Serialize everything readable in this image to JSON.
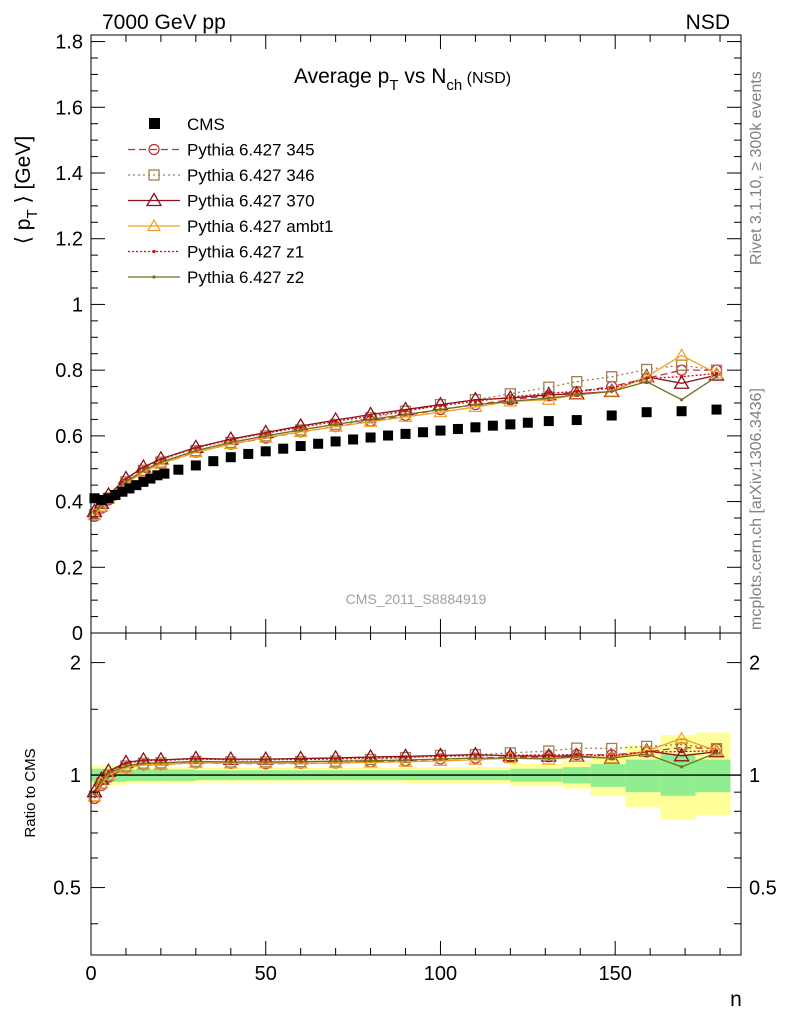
{
  "header": {
    "left": "7000 GeV pp",
    "right": "NSD"
  },
  "side_texts": {
    "rivet": "Rivet 3.1.10, ≥ 300k events",
    "mcplots": "mcplots.cern.ch [arXiv:1306.3436]"
  },
  "colors": {
    "cms": "#000000",
    "p345": "#c0303a",
    "p346": "#a08050",
    "p370": "#8b1020",
    "ambt1": "#f0a020",
    "z1": "#c01010",
    "z2": "#707020",
    "band_inner": "#90ee90",
    "band_outer": "#ffff99"
  },
  "chart_data": [
    {
      "type": "scatter",
      "title": "Average p_T vs N_ch (NSD)",
      "title_parts": {
        "main": "Average p",
        "sub1": "T",
        "mid": " vs N",
        "sub2": "ch",
        "tail": " (NSD)"
      },
      "ylabel": "⟨ p_T ⟩ [GeV]",
      "ylabel_parts": {
        "open": "⟨ p",
        "sub": "T",
        "close": " ⟩ [GeV]"
      },
      "xlabel": "n",
      "xlim": [
        0,
        186
      ],
      "ylim": [
        0,
        1.82
      ],
      "yticks": [
        "0",
        "0.2",
        "0.4",
        "0.6",
        "0.8",
        "1",
        "1.2",
        "1.4",
        "1.6",
        "1.8"
      ],
      "xticks": [
        "0",
        "50",
        "100",
        "150"
      ],
      "watermark": "CMS_2011_S8884919",
      "legend": [
        {
          "key": "cms",
          "label": "CMS"
        },
        {
          "key": "p345",
          "label": "Pythia 6.427 345"
        },
        {
          "key": "p346",
          "label": "Pythia 6.427 346"
        },
        {
          "key": "p370",
          "label": "Pythia 6.427 370"
        },
        {
          "key": "ambt1",
          "label": "Pythia 6.427 ambt1"
        },
        {
          "key": "z1",
          "label": "Pythia 6.427 z1"
        },
        {
          "key": "z2",
          "label": "Pythia 6.427 z2"
        }
      ],
      "cms": {
        "x": [
          1,
          3,
          5,
          7,
          9,
          11,
          13,
          15,
          17,
          19,
          21,
          25,
          30,
          35,
          40,
          45,
          50,
          55,
          60,
          65,
          70,
          75,
          80,
          85,
          90,
          95,
          100,
          105,
          110,
          115,
          120,
          125,
          131,
          139,
          149,
          159,
          169,
          179
        ],
        "y": [
          0.41,
          0.405,
          0.41,
          0.42,
          0.43,
          0.44,
          0.45,
          0.46,
          0.47,
          0.48,
          0.485,
          0.497,
          0.51,
          0.523,
          0.535,
          0.545,
          0.553,
          0.561,
          0.569,
          0.576,
          0.583,
          0.589,
          0.595,
          0.601,
          0.606,
          0.611,
          0.616,
          0.621,
          0.626,
          0.631,
          0.635,
          0.64,
          0.645,
          0.648,
          0.662,
          0.672,
          0.675,
          0.68
        ]
      },
      "series": [
        {
          "key": "p345",
          "name": "Pythia 6.427 345",
          "x": [
            1,
            3,
            5,
            10,
            15,
            20,
            30,
            40,
            50,
            60,
            70,
            80,
            90,
            100,
            110,
            120,
            131,
            139,
            149,
            159,
            169,
            179
          ],
          "y": [
            0.355,
            0.38,
            0.405,
            0.455,
            0.49,
            0.515,
            0.55,
            0.575,
            0.593,
            0.612,
            0.628,
            0.645,
            0.662,
            0.68,
            0.695,
            0.71,
            0.722,
            0.735,
            0.75,
            0.775,
            0.8,
            0.8
          ]
        },
        {
          "key": "p346",
          "name": "Pythia 6.427 346",
          "x": [
            1,
            3,
            5,
            10,
            15,
            20,
            30,
            40,
            50,
            60,
            70,
            80,
            90,
            100,
            110,
            120,
            131,
            139,
            149,
            159,
            169,
            179
          ],
          "y": [
            0.36,
            0.385,
            0.41,
            0.46,
            0.495,
            0.52,
            0.555,
            0.58,
            0.6,
            0.618,
            0.635,
            0.655,
            0.675,
            0.695,
            0.71,
            0.728,
            0.748,
            0.765,
            0.78,
            0.802,
            0.815,
            0.8
          ]
        },
        {
          "key": "p370",
          "name": "Pythia 6.427 370",
          "x": [
            1,
            3,
            5,
            10,
            15,
            20,
            30,
            40,
            50,
            60,
            70,
            80,
            90,
            100,
            110,
            120,
            131,
            139,
            149,
            159,
            169,
            179
          ],
          "y": [
            0.37,
            0.395,
            0.42,
            0.47,
            0.505,
            0.53,
            0.565,
            0.59,
            0.61,
            0.63,
            0.648,
            0.665,
            0.68,
            0.695,
            0.71,
            0.715,
            0.725,
            0.728,
            0.735,
            0.78,
            0.76,
            0.785
          ]
        },
        {
          "key": "ambt1",
          "name": "Pythia 6.427 ambt1",
          "x": [
            1,
            3,
            5,
            10,
            15,
            20,
            30,
            40,
            50,
            60,
            70,
            80,
            90,
            100,
            110,
            120,
            131,
            139,
            149,
            159,
            169,
            179
          ],
          "y": [
            0.36,
            0.385,
            0.41,
            0.455,
            0.49,
            0.515,
            0.55,
            0.575,
            0.595,
            0.612,
            0.628,
            0.643,
            0.658,
            0.672,
            0.688,
            0.705,
            0.71,
            0.725,
            0.735,
            0.78,
            0.845,
            0.79
          ]
        },
        {
          "key": "z1",
          "name": "Pythia 6.427 z1",
          "x": [
            1,
            3,
            5,
            10,
            15,
            20,
            30,
            40,
            50,
            60,
            70,
            80,
            90,
            100,
            110,
            120,
            131,
            139,
            149,
            159,
            169,
            179
          ],
          "y": [
            0.37,
            0.392,
            0.418,
            0.468,
            0.503,
            0.528,
            0.563,
            0.588,
            0.608,
            0.626,
            0.644,
            0.66,
            0.676,
            0.692,
            0.705,
            0.718,
            0.73,
            0.735,
            0.745,
            0.775,
            0.78,
            0.79
          ]
        },
        {
          "key": "z2",
          "name": "Pythia 6.427 z2",
          "x": [
            1,
            3,
            5,
            10,
            15,
            20,
            30,
            40,
            50,
            60,
            70,
            80,
            90,
            100,
            110,
            120,
            131,
            139,
            149,
            159,
            169,
            179
          ],
          "y": [
            0.365,
            0.39,
            0.415,
            0.46,
            0.495,
            0.52,
            0.555,
            0.58,
            0.6,
            0.618,
            0.635,
            0.65,
            0.665,
            0.68,
            0.695,
            0.705,
            0.715,
            0.725,
            0.735,
            0.765,
            0.71,
            0.78
          ]
        }
      ]
    },
    {
      "type": "scatter",
      "ylabel": "Ratio to CMS",
      "xlabel": "n",
      "xlim": [
        0,
        186
      ],
      "ylim": [
        0.33,
        2.4
      ],
      "log_y": true,
      "yticks": [
        "0.5",
        "1",
        "2"
      ],
      "xticks": [
        "0",
        "50",
        "100",
        "150"
      ],
      "band": {
        "x_edges": [
          0,
          10,
          30,
          60,
          90,
          120,
          135,
          143,
          153,
          163,
          173,
          183
        ],
        "inner_lo": [
          0.96,
          0.965,
          0.97,
          0.97,
          0.97,
          0.96,
          0.95,
          0.93,
          0.9,
          0.88,
          0.9
        ],
        "inner_hi": [
          1.04,
          1.035,
          1.03,
          1.03,
          1.03,
          1.04,
          1.05,
          1.07,
          1.1,
          1.14,
          1.1
        ],
        "outer_lo": [
          0.94,
          0.95,
          0.955,
          0.955,
          0.95,
          0.935,
          0.92,
          0.88,
          0.82,
          0.76,
          0.78
        ],
        "outer_hi": [
          1.06,
          1.05,
          1.045,
          1.045,
          1.05,
          1.07,
          1.09,
          1.13,
          1.2,
          1.28,
          1.3
        ]
      }
    }
  ]
}
